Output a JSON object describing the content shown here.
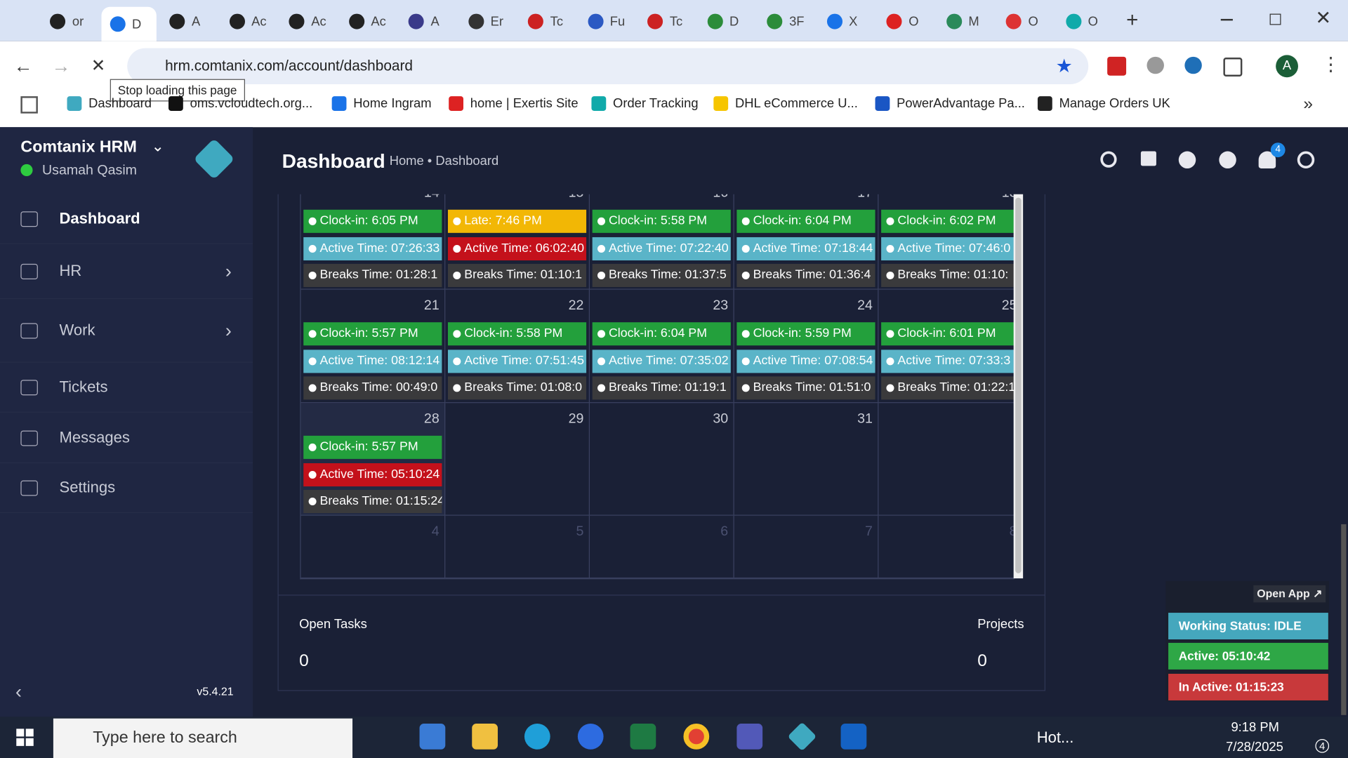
{
  "browser": {
    "tabs": [
      "or",
      "D",
      "A",
      "Ac",
      "Ac",
      "Ac",
      "A",
      "Er",
      "Tc",
      "Fu",
      "Tc",
      "D",
      "3F",
      "X",
      "O",
      "M",
      "O",
      "O"
    ],
    "active_tab": 1,
    "url": "hrm.comtanix.com/account/dashboard",
    "tooltip": "Stop loading this page",
    "profile": "A",
    "bookmarks": [
      "Dashboard",
      "oms.vcloudtech.org...",
      "Home Ingram",
      "home | Exertis Site",
      "Order Tracking",
      "DHL eCommerce U...",
      "PowerAdvantage Pa...",
      "Manage Orders UK"
    ]
  },
  "sidebar": {
    "brand": "Comtanix HRM",
    "user": "Usamah Qasim",
    "nav": [
      "Dashboard",
      "HR",
      "Work",
      "Tickets",
      "Messages",
      "Settings"
    ],
    "version": "v5.4.21"
  },
  "header": {
    "title": "Dashboard",
    "breadcrumb": [
      "Home",
      "Dashboard"
    ],
    "notifications": 4
  },
  "calendar": {
    "weeks": [
      {
        "muted": false,
        "days": [
          {
            "num": "14",
            "entries": [
              {
                "text": "Clock-in: 6:05 PM",
                "color": "#23a03c"
              },
              {
                "text": "Active Time: 07:26:33",
                "color": "#5ab4c8"
              },
              {
                "text": "Breaks Time: 01:28:1",
                "color": "#3a3a3c"
              }
            ]
          },
          {
            "num": "15",
            "entries": [
              {
                "text": "Late: 7:46 PM",
                "color": "#f2b705"
              },
              {
                "text": "Active Time: 06:02:40",
                "color": "#c4111b"
              },
              {
                "text": "Breaks Time: 01:10:1",
                "color": "#3a3a3c"
              }
            ]
          },
          {
            "num": "16",
            "entries": [
              {
                "text": "Clock-in: 5:58 PM",
                "color": "#23a03c"
              },
              {
                "text": "Active Time: 07:22:40",
                "color": "#5ab4c8"
              },
              {
                "text": "Breaks Time: 01:37:5",
                "color": "#3a3a3c"
              }
            ]
          },
          {
            "num": "17",
            "entries": [
              {
                "text": "Clock-in: 6:04 PM",
                "color": "#23a03c"
              },
              {
                "text": "Active Time: 07:18:44",
                "color": "#5ab4c8"
              },
              {
                "text": "Breaks Time: 01:36:4",
                "color": "#3a3a3c"
              }
            ]
          },
          {
            "num": "18",
            "entries": [
              {
                "text": "Clock-in: 6:02 PM",
                "color": "#23a03c"
              },
              {
                "text": "Active Time: 07:46:0",
                "color": "#5ab4c8"
              },
              {
                "text": "Breaks Time: 01:10:",
                "color": "#3a3a3c"
              }
            ]
          }
        ]
      },
      {
        "muted": false,
        "days": [
          {
            "num": "21",
            "entries": [
              {
                "text": "Clock-in: 5:57 PM",
                "color": "#23a03c"
              },
              {
                "text": "Active Time: 08:12:14",
                "color": "#5ab4c8"
              },
              {
                "text": "Breaks Time: 00:49:0",
                "color": "#3a3a3c"
              }
            ]
          },
          {
            "num": "22",
            "entries": [
              {
                "text": "Clock-in: 5:58 PM",
                "color": "#23a03c"
              },
              {
                "text": "Active Time: 07:51:45",
                "color": "#5ab4c8"
              },
              {
                "text": "Breaks Time: 01:08:0",
                "color": "#3a3a3c"
              }
            ]
          },
          {
            "num": "23",
            "entries": [
              {
                "text": "Clock-in: 6:04 PM",
                "color": "#23a03c"
              },
              {
                "text": "Active Time: 07:35:02",
                "color": "#5ab4c8"
              },
              {
                "text": "Breaks Time: 01:19:1",
                "color": "#3a3a3c"
              }
            ]
          },
          {
            "num": "24",
            "entries": [
              {
                "text": "Clock-in: 5:59 PM",
                "color": "#23a03c"
              },
              {
                "text": "Active Time: 07:08:54",
                "color": "#5ab4c8"
              },
              {
                "text": "Breaks Time: 01:51:0",
                "color": "#3a3a3c"
              }
            ]
          },
          {
            "num": "25",
            "entries": [
              {
                "text": "Clock-in: 6:01 PM",
                "color": "#23a03c"
              },
              {
                "text": "Active Time: 07:33:3",
                "color": "#5ab4c8"
              },
              {
                "text": "Breaks Time: 01:22:1",
                "color": "#3a3a3c"
              }
            ]
          }
        ]
      },
      {
        "muted": false,
        "days": [
          {
            "num": "28",
            "entries": [
              {
                "text": "Clock-in: 5:57 PM",
                "color": "#23a03c"
              },
              {
                "text": "Active Time: 05:10:24",
                "color": "#c4111b"
              },
              {
                "text": "Breaks Time: 01:15:24",
                "color": "#3a3a3c"
              }
            ]
          },
          {
            "num": "29",
            "entries": []
          },
          {
            "num": "30",
            "entries": []
          },
          {
            "num": "31",
            "entries": []
          },
          {
            "num": null,
            "entries": []
          }
        ]
      },
      {
        "muted": true,
        "days": [
          {
            "num": "4",
            "entries": []
          },
          {
            "num": "5",
            "entries": []
          },
          {
            "num": "6",
            "entries": []
          },
          {
            "num": "7",
            "entries": []
          },
          {
            "num": "8",
            "entries": []
          }
        ]
      }
    ]
  },
  "stats": [
    {
      "label": "Open Tasks",
      "value": 0
    },
    {
      "label": "Projects",
      "value": 0
    }
  ],
  "widget": {
    "open_app": "Open App ↗",
    "status": "Working Status: IDLE",
    "active": "Active: 05:10:42",
    "inactive": "In Active: 01:15:23"
  },
  "taskbar": {
    "search": "Type here to search",
    "weather": "Hot...",
    "time": "9:18 PM",
    "date": "7/28/2025",
    "notifications": 4
  }
}
